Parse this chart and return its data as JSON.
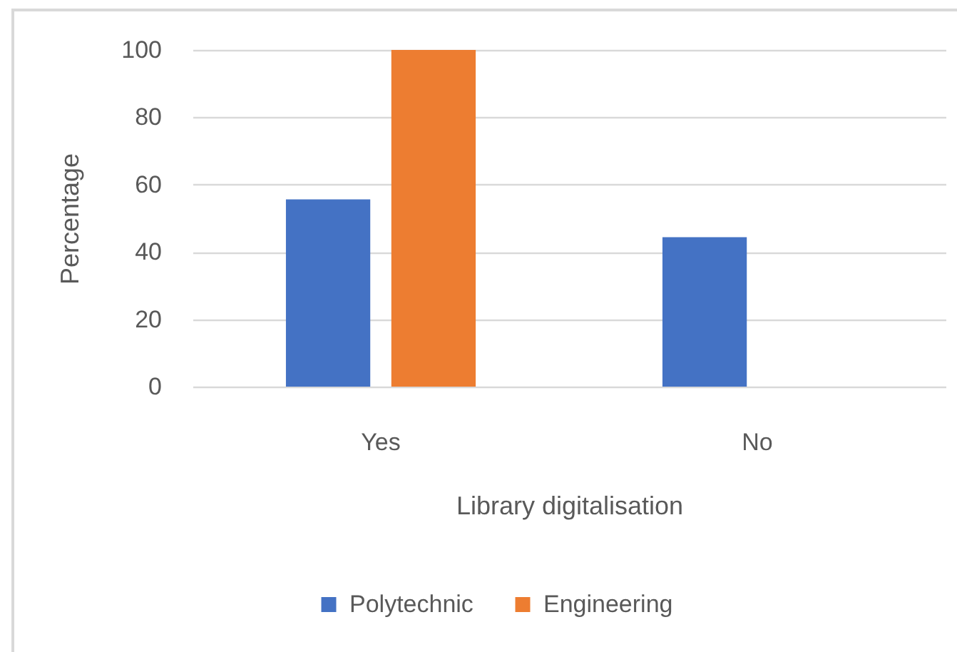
{
  "chart_data": {
    "type": "bar",
    "xlabel": "Library digitalisation",
    "ylabel": "Percentage",
    "categories": [
      "Yes",
      "No"
    ],
    "series": [
      {
        "name": "Polytechnic",
        "color": "#4472c4",
        "values": [
          55.6,
          44.4
        ]
      },
      {
        "name": "Engineering",
        "color": "#ed7d31",
        "values": [
          100,
          0
        ]
      }
    ],
    "ylim": [
      0,
      100
    ],
    "yticks": [
      0,
      20,
      40,
      60,
      80,
      100
    ],
    "grid": "y",
    "legend": "bottom"
  }
}
